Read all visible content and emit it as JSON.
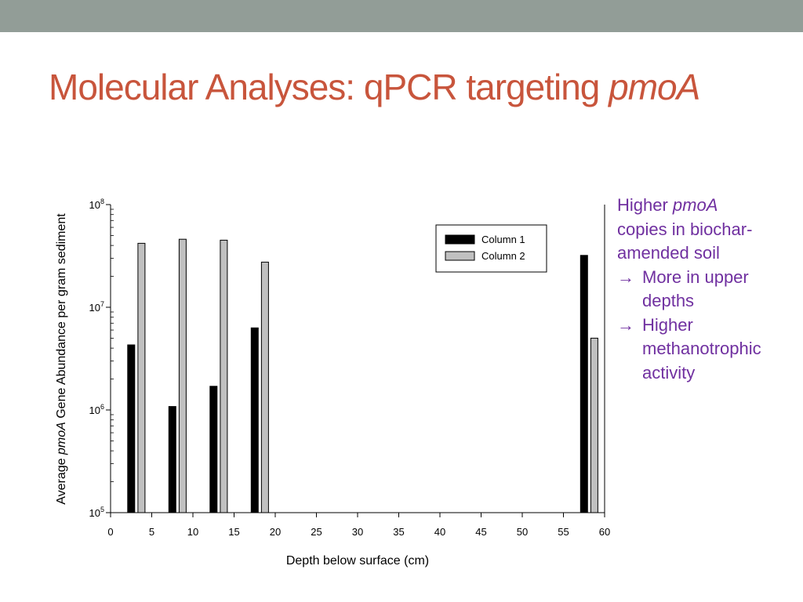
{
  "slide": {
    "title_main": "Molecular Analyses: qPCR targeting ",
    "title_italic": "pmoA"
  },
  "callout": {
    "line1_prefix": "Higher ",
    "line1_italic": "pmoA",
    "line2": "copies in biochar-",
    "line3": "amended soil",
    "bullets": [
      {
        "arrow": "→",
        "lines": [
          "More in upper",
          "depths"
        ]
      },
      {
        "arrow": "→",
        "lines": [
          "Higher",
          "methanotrophic",
          "activity"
        ]
      }
    ]
  },
  "colors": {
    "top_bar": "#929d97",
    "title": "#c8553c",
    "callout": "#7030a0",
    "column1": "#000000",
    "column2": "#c0c0c0"
  },
  "chart_data": {
    "type": "bar",
    "xlabel": "Depth below surface (cm)",
    "ylabel_prefix": "Average ",
    "ylabel_italic": "pmoA",
    "ylabel_suffix": " Gene Abundance per gram sediment",
    "x_ticks": [
      0,
      5,
      10,
      15,
      20,
      25,
      30,
      35,
      40,
      45,
      50,
      55,
      60
    ],
    "xlim": [
      0,
      60
    ],
    "y_scale": "log",
    "ylim": [
      100000,
      100000000
    ],
    "y_ticks": [
      {
        "value": 100000,
        "base": "10",
        "exp": "5"
      },
      {
        "value": 1000000,
        "base": "10",
        "exp": "6"
      },
      {
        "value": 10000000,
        "base": "10",
        "exp": "7"
      },
      {
        "value": 100000000,
        "base": "10",
        "exp": "8"
      }
    ],
    "grid": false,
    "legend_position": "top-right",
    "series": [
      {
        "name": "Column 1",
        "color": "#000000",
        "points": [
          {
            "x": 2.5,
            "y": 4300000
          },
          {
            "x": 7.5,
            "y": 1080000
          },
          {
            "x": 12.5,
            "y": 1700000
          },
          {
            "x": 17.5,
            "y": 6300000
          },
          {
            "x": 57.5,
            "y": 32000000
          }
        ]
      },
      {
        "name": "Column 2",
        "color": "#c0c0c0",
        "points": [
          {
            "x": 3.75,
            "y": 42000000
          },
          {
            "x": 8.75,
            "y": 46000000
          },
          {
            "x": 13.75,
            "y": 45000000
          },
          {
            "x": 18.75,
            "y": 27500000
          },
          {
            "x": 58.75,
            "y": 5000000
          }
        ]
      }
    ]
  }
}
